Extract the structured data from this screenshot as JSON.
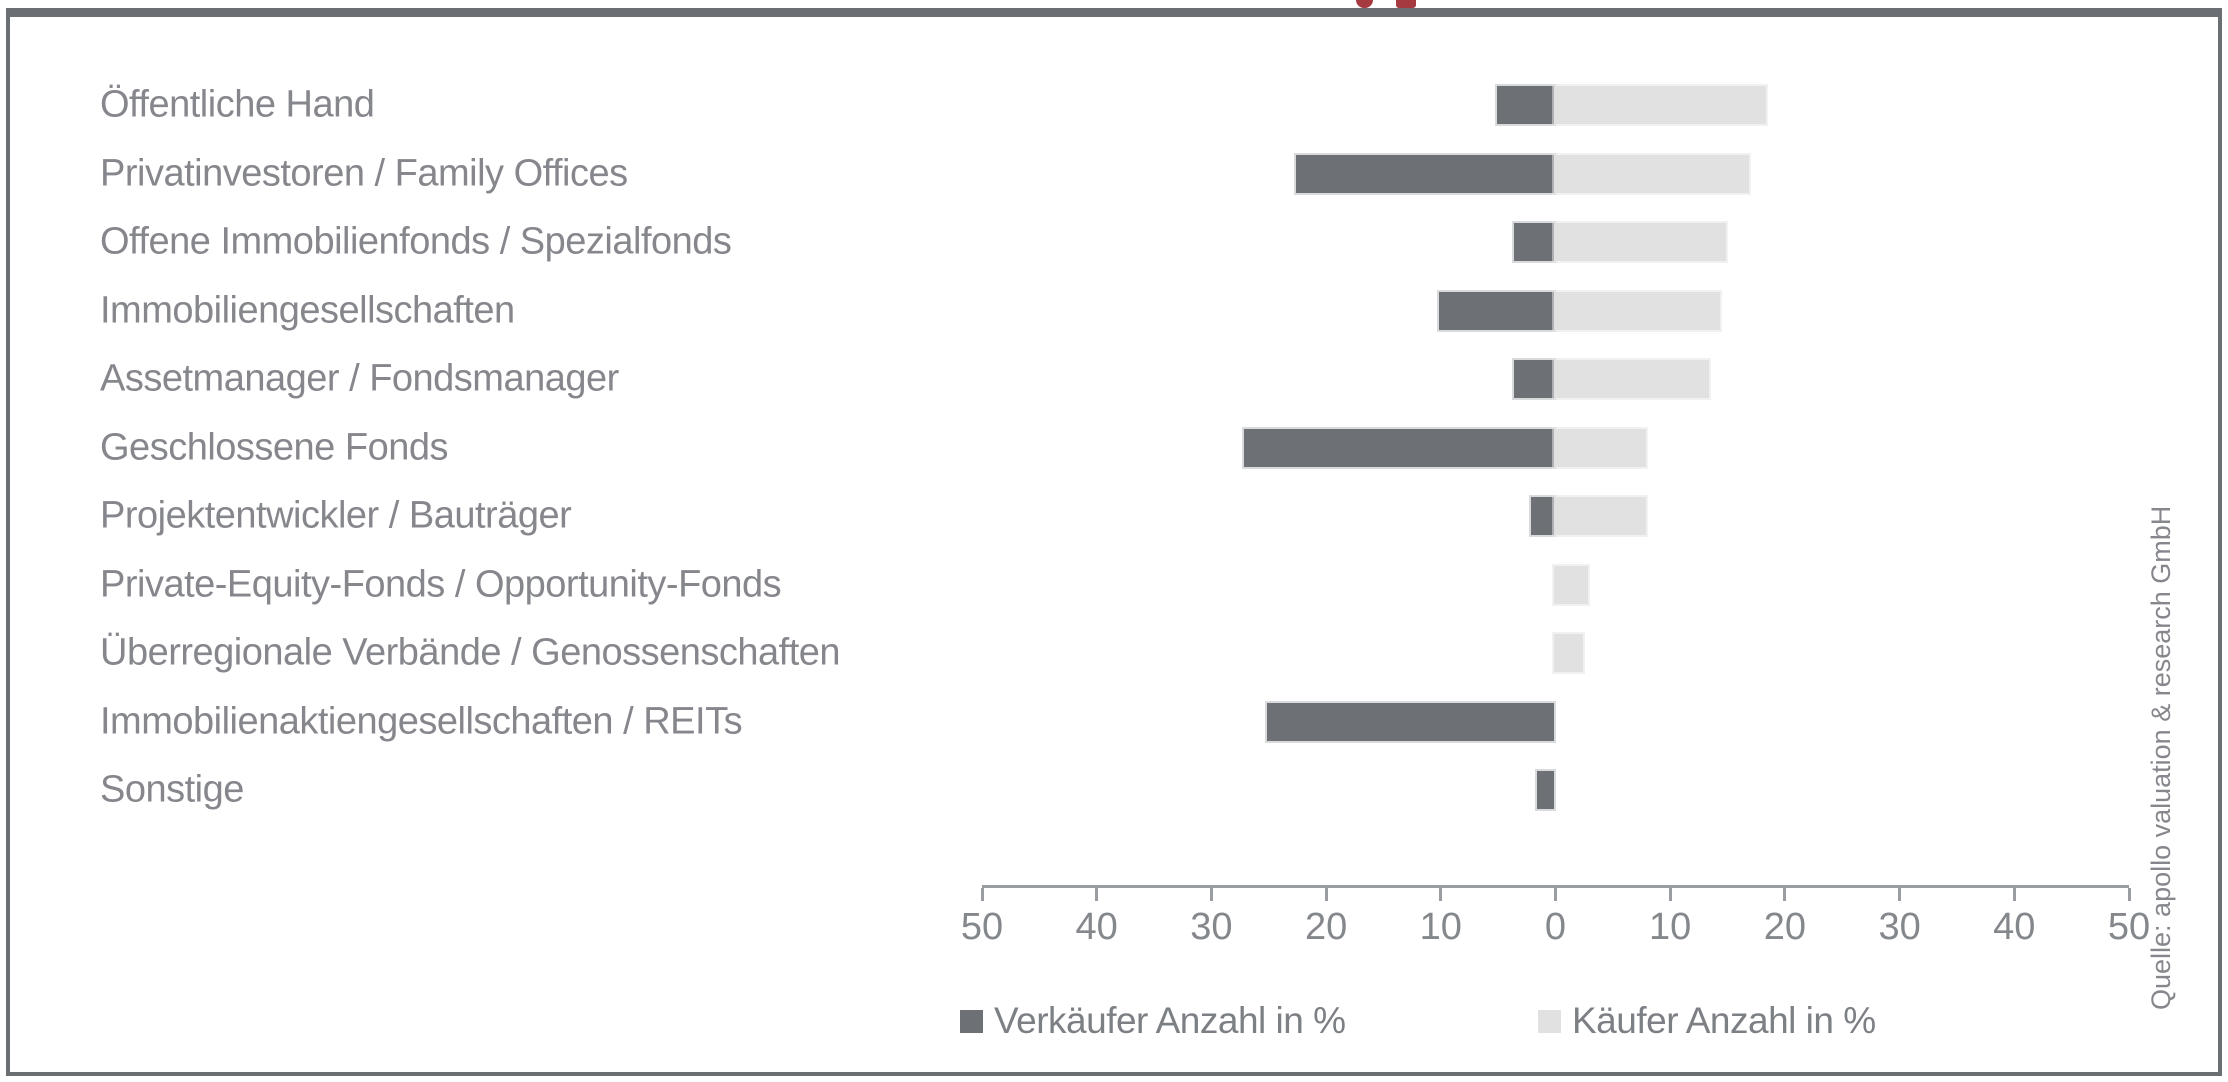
{
  "clipped_title": {
    "color": "#a53a40"
  },
  "chart_data": {
    "type": "bar",
    "variant": "horizontal-diverging",
    "categories": [
      "Öffentliche Hand",
      "Privatinvestoren / Family Offices",
      "Offene Immobilienfonds / Spezialfonds",
      "Immobiliengesellschaften",
      "Assetmanager / Fondsmanager",
      "Geschlossene Fonds",
      "Projektentwickler / Bauträger",
      "Private-Equity-Fonds / Opportunity-Fonds",
      "Überregionale Verbände / Genossenschaften",
      "Immobilienaktiengesellschaften / REITs",
      "Sonstige"
    ],
    "series": [
      {
        "name": "Verkäufer Anzahl in %",
        "direction": "left",
        "color": "#6d7075",
        "values": [
          5,
          22.5,
          3.5,
          10,
          3.5,
          27,
          2,
          0,
          0,
          25,
          1.5
        ]
      },
      {
        "name": "Käufer Anzahl in %",
        "direction": "right",
        "color": "#e1e1e2",
        "values": [
          18.5,
          17,
          15,
          14.5,
          13.5,
          8,
          8,
          3,
          2.5,
          0,
          0
        ]
      }
    ],
    "x_axis": {
      "min": -50,
      "max": 50,
      "tick_step": 10,
      "tick_labels": [
        "50",
        "40",
        "30",
        "20",
        "10",
        "0",
        "10",
        "20",
        "30",
        "40",
        "50"
      ]
    },
    "grid": false,
    "legend_position": "bottom",
    "source": "Quelle: apollo valuation & research GmbH"
  }
}
